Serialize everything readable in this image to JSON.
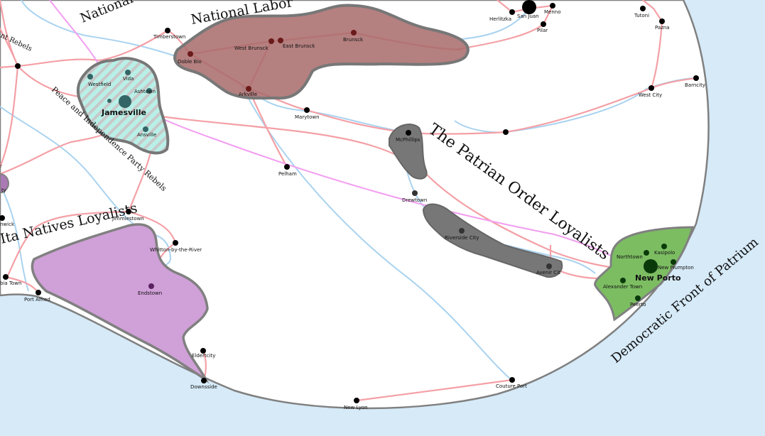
{
  "colors": {
    "sea": "#d6eaf8",
    "land": "#ffffff",
    "coast": "#808080",
    "road": "#f4a0a6",
    "rail": "#a9d3f0",
    "national_labor": "#a86a6a",
    "patrian_order": "#777777",
    "democratic_front": "#7cbd62",
    "ita_natives": "#d0a0d8",
    "peace_independence": "#b8f0e8"
  },
  "regions": {
    "national_labor": "National Labor",
    "national_top": "National",
    "patrian_order": "The Patrian Order Loyalists",
    "democratic_front": "Democratic Front of Patrium",
    "ita_natives": "Ita Natives Loyalists",
    "peace_independence": "Peace and Independence Party Rebels",
    "rebels_edge": "nt Rebels"
  },
  "towns": {
    "timberstown": "Timberstown",
    "doble_bio": "Doble Bio",
    "west_brunsck": "West Brunsck",
    "east_brunsck": "East Brunsck",
    "brunsck": "Brunsck",
    "arkville": "Arkville",
    "marytown": "Marytown",
    "mcphillips": "McPhillips",
    "pelham": "Pelham",
    "drewtown": "Drewtown",
    "riverside_city": "Riverside City",
    "avenir_city": "Avenir Cit",
    "jimmiestown": "Jimmiestown",
    "whitton": "Whitton-by-the-River",
    "endstown": "Endstown",
    "port_alfred": "Port Alfred",
    "bia_town": "bia Town",
    "nwick": "nwick",
    "ty": "ty",
    "r": "r",
    "eldertcity": "Eldertcity",
    "downsside": "Downsside",
    "new_lyon": "New Lyon",
    "couture_port": "Couture Port",
    "herlitzka": "Herlitzka",
    "san_juan": "San Juan",
    "menno": "Menno",
    "pilar": "Pilar",
    "tutoni": "Tutoni",
    "pazna": "Pazna",
    "barncity": "Barncity",
    "west_city": "West City",
    "northtown": "Northtown",
    "kasipolo": "Kasipolo",
    "new_plumpton": "New Plumpton",
    "new_porto": "New Porto",
    "alexander_town": "Alexander Town",
    "peerto": "Peerto",
    "jamesville": "Jamesville",
    "westfield": "Westfield",
    "vida": "Vida",
    "ashtown": "Ashtown",
    "ansville": "Ansville"
  }
}
